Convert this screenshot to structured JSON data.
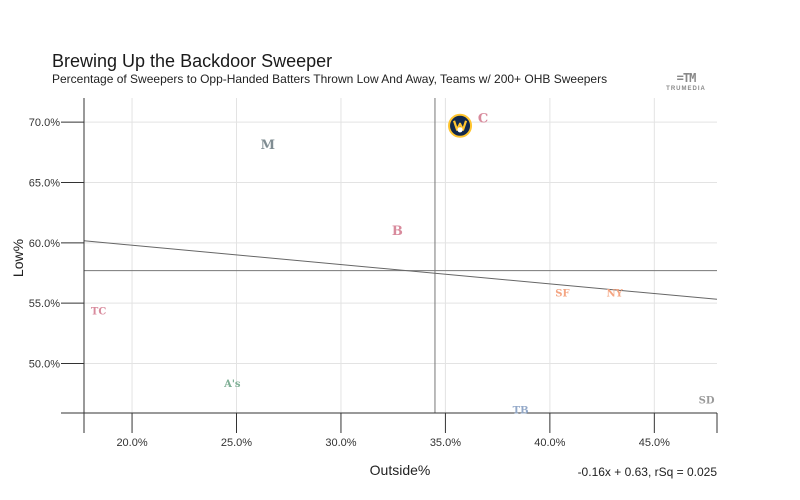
{
  "chart_data": {
    "type": "scatter",
    "title": "Brewing Up the Backdoor Sweeper",
    "subtitle": "Percentage of Sweepers to Opp-Handed Batters Thrown Low And Away, Teams w/ 200+ OHB Sweepers",
    "xlabel": "Outside%",
    "ylabel": "Low%",
    "xlim": [
      0.177,
      0.48
    ],
    "ylim": [
      0.459,
      0.72
    ],
    "x_ticks": [
      "20.0%",
      "25.0%",
      "30.0%",
      "35.0%",
      "40.0%",
      "45.0%"
    ],
    "y_ticks": [
      "50.0%",
      "55.0%",
      "60.0%",
      "65.0%",
      "70.0%"
    ],
    "grid": true,
    "reference_lines": {
      "x_mean": 0.345,
      "y_mean": 0.577
    },
    "trendline": {
      "slope": -0.16,
      "intercept": 0.63,
      "label": "-0.16x + 0.63, rSq = 0.025"
    },
    "points": [
      {
        "team": "Brewers",
        "x": 0.357,
        "y": 0.697,
        "glyph": "b",
        "color": "#12284B",
        "accent": "#FFC52F",
        "highlight": true
      },
      {
        "team": "Guardians",
        "x": 0.368,
        "y": 0.703,
        "glyph": "C",
        "color": "#D88A9C"
      },
      {
        "team": "Marlins",
        "x": 0.265,
        "y": 0.681,
        "glyph": "M",
        "color": "#7F8C92"
      },
      {
        "team": "Red Sox",
        "x": 0.327,
        "y": 0.61,
        "glyph": "B",
        "color": "#D88A9C"
      },
      {
        "team": "Giants",
        "x": 0.406,
        "y": 0.559,
        "glyph": "SF",
        "color": "#F4A582"
      },
      {
        "team": "Mets",
        "x": 0.431,
        "y": 0.559,
        "glyph": "NY",
        "color": "#F4A582"
      },
      {
        "team": "Twins",
        "x": 0.184,
        "y": 0.544,
        "glyph": "TC",
        "color": "#D88A9C"
      },
      {
        "team": "Athletics",
        "x": 0.248,
        "y": 0.484,
        "glyph": "A's",
        "color": "#7FAF95"
      },
      {
        "team": "Rays",
        "x": 0.386,
        "y": 0.462,
        "glyph": "TB",
        "color": "#92A8C8"
      },
      {
        "team": "Padres",
        "x": 0.475,
        "y": 0.47,
        "glyph": "SD",
        "color": "#9A9A9A"
      }
    ]
  },
  "brand": {
    "mark": "=TM",
    "wordmark": "TRUMEDIA"
  }
}
